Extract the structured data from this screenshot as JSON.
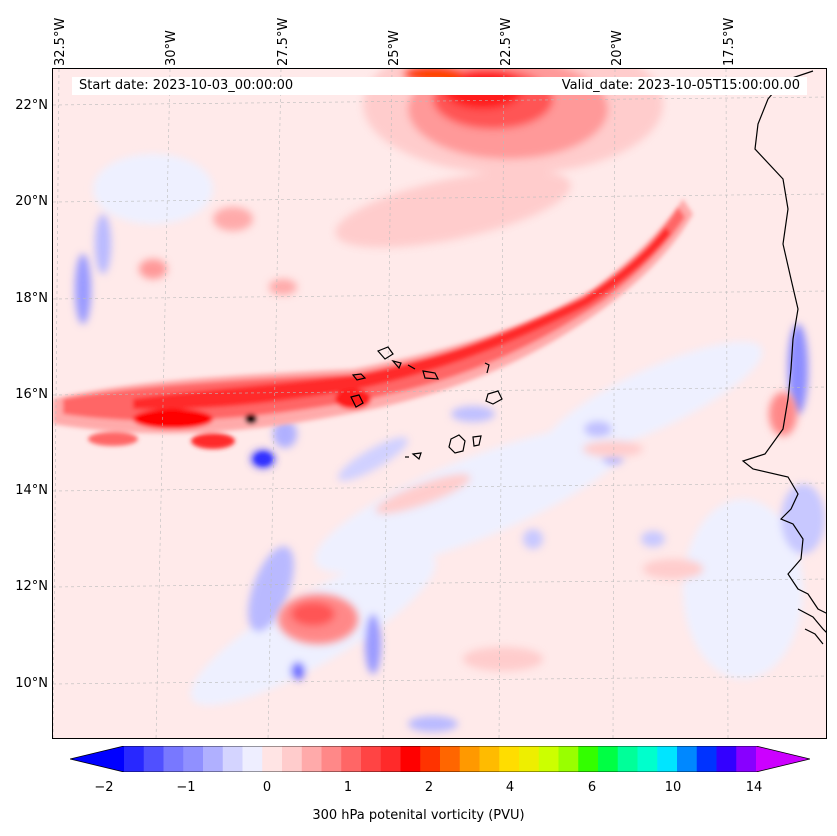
{
  "header": {
    "start_date": "Start date: 2023-10-03_00:00:00",
    "valid_date": "Valid_date: 2023-10-05T15:00:00.00"
  },
  "axes": {
    "lon_labels": [
      "32.5°W",
      "30°W",
      "27.5°W",
      "25°W",
      "22.5°W",
      "20°W",
      "17.5°W"
    ],
    "lat_labels": [
      "22°N",
      "20°N",
      "18°N",
      "16°N",
      "14°N",
      "12°N",
      "10°N"
    ]
  },
  "map_extent": {
    "lon_range": [
      -32.6,
      -15.3
    ],
    "lat_range": [
      8.9,
      22.8
    ]
  },
  "colorbar": {
    "title": "300 hPa potenital vorticity (PVU)",
    "tick_labels": [
      "−2",
      "−1",
      "0",
      "1",
      "2",
      "4",
      "6",
      "10",
      "14"
    ],
    "colors": [
      "#0000ff",
      "#2828ff",
      "#5050ff",
      "#7878ff",
      "#9090ff",
      "#b0b0ff",
      "#d4d4ff",
      "#eeeeff",
      "#ffe4e4",
      "#ffcccc",
      "#ffaaaa",
      "#ff8888",
      "#ff6666",
      "#ff4444",
      "#ff2a2a",
      "#ff0000",
      "#ff3300",
      "#ff6600",
      "#ff9900",
      "#ffbb00",
      "#ffdd00",
      "#eeee00",
      "#ccff00",
      "#99ff00",
      "#33ff00",
      "#00ff44",
      "#00ff99",
      "#00ffcc",
      "#00e5ff",
      "#0088ff",
      "#0033ff",
      "#3300ff",
      "#8800ff",
      "#cc00ff"
    ]
  },
  "features": {
    "pv_streamer": "high PV band from ~15.5°N 32.5°W to ~19.5°N 19°W",
    "islands": "Cape Verde islands",
    "coastline": "West African coast"
  }
}
